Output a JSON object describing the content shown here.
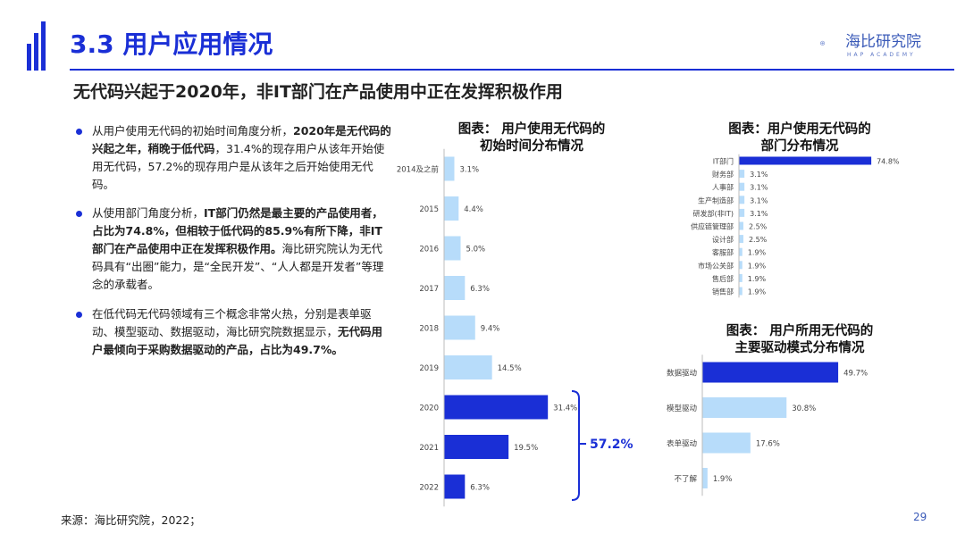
{
  "header": {
    "title": "3.3 用户应用情况",
    "logo_text": "海比研究院",
    "logo_sub": "HAP ACADEMY"
  },
  "subtitle": "无代码兴起于2020年，非IT部门在产品使用中正在发挥积极作用",
  "bullets": [
    {
      "parts": [
        {
          "t": "从用户使用无代码的初始时间角度分析，",
          "b": false
        },
        {
          "t": "2020年是无代码的兴起之年，稍晚于低代码",
          "b": true
        },
        {
          "t": "，31.4%的现存用户从该年开始使用无代码，57.2%的现存用户是从该年之后开始使用无代码。",
          "b": false
        }
      ]
    },
    {
      "parts": [
        {
          "t": "从使用部门角度分析，",
          "b": false
        },
        {
          "t": "IT部门仍然是最主要的产品使用者，占比为74.8%，但相较于低代码的85.9%有所下降，非IT部门在产品使用中正在发挥积极作用。",
          "b": true
        },
        {
          "t": "海比研究院认为无代码具有“出圈”能力，是“全民开发”、“人人都是开发者”等理念的承载者。",
          "b": false
        }
      ]
    },
    {
      "parts": [
        {
          "t": "在低代码无代码领域有三个概念非常火热，分别是表单驱动、模型驱动、数据驱动，海比研究院数据显示，",
          "b": false
        },
        {
          "t": "无代码用户最倾向于采购数据驱动的产品，占比为49.7%。",
          "b": true
        }
      ]
    }
  ],
  "footer": {
    "source": "来源：海比研究院，2022；",
    "page": "29"
  },
  "colors": {
    "accent": "#1a2fd6",
    "light_bar": "#b7dcfa",
    "dark_bar": "#1a2fd6"
  },
  "chart_data": [
    {
      "type": "bar",
      "orientation": "horizontal",
      "title": "图表： 用户使用无代码的初始时间分布情况",
      "categories": [
        "2014及之前",
        "2015",
        "2016",
        "2017",
        "2018",
        "2019",
        "2020",
        "2021",
        "2022"
      ],
      "values": [
        3.1,
        4.4,
        5.0,
        6.3,
        9.4,
        14.5,
        31.4,
        19.5,
        6.3
      ],
      "labels": [
        "3.1%",
        "4.4%",
        "5.0%",
        "6.3%",
        "9.4%",
        "14.5%",
        "31.4%",
        "19.5%",
        "6.3%"
      ],
      "highlighted": [
        "2020",
        "2021",
        "2022"
      ],
      "annotation": "57.2%",
      "unit": "%"
    },
    {
      "type": "bar",
      "orientation": "horizontal",
      "title": "图表：用户使用无代码的部门分布情况",
      "categories": [
        "IT部门",
        "财务部",
        "人事部",
        "生产制造部",
        "研发部(非IT)",
        "供应链管理部",
        "设计部",
        "客服部",
        "市场公关部",
        "售后部",
        "销售部"
      ],
      "values": [
        74.8,
        3.1,
        3.1,
        3.1,
        3.1,
        2.5,
        2.5,
        1.9,
        1.9,
        1.9,
        1.9
      ],
      "labels": [
        "74.8%",
        "3.1%",
        "3.1%",
        "3.1%",
        "3.1%",
        "2.5%",
        "2.5%",
        "1.9%",
        "1.9%",
        "1.9%",
        "1.9%"
      ],
      "highlighted": [
        "IT部门"
      ],
      "unit": "%"
    },
    {
      "type": "bar",
      "orientation": "horizontal",
      "title": "图表： 用户所用无代码的主要驱动模式分布情况",
      "categories": [
        "数据驱动",
        "模型驱动",
        "表单驱动",
        "不了解"
      ],
      "values": [
        49.7,
        30.8,
        17.6,
        1.9
      ],
      "labels": [
        "49.7%",
        "30.8%",
        "17.6%",
        "1.9%"
      ],
      "highlighted": [
        "数据驱动"
      ],
      "unit": "%"
    }
  ]
}
